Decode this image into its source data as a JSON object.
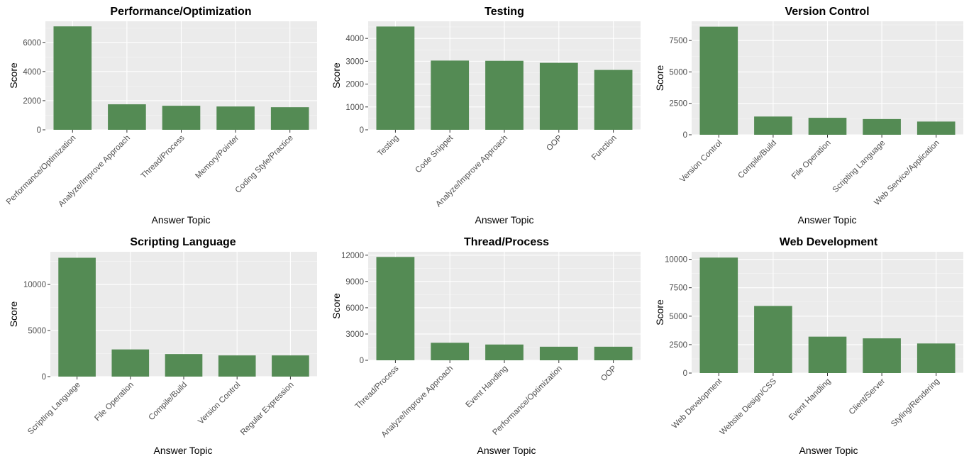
{
  "chart_data": [
    {
      "type": "bar",
      "title": "Performance/Optimization",
      "xlabel": "Answer Topic",
      "ylabel": "Score",
      "categories": [
        "Performance/Optimization",
        "Analyze/Improve Approach",
        "Thread/Process",
        "Memory/Pointer",
        "Coding Style/Practice"
      ],
      "values": [
        7100,
        1750,
        1650,
        1600,
        1550
      ],
      "yticks": [
        0,
        2000,
        4000,
        6000
      ],
      "ylim": [
        0,
        7450
      ],
      "color": "#548b54"
    },
    {
      "type": "bar",
      "title": "Testing",
      "xlabel": "Answer Topic",
      "ylabel": "Score",
      "categories": [
        "Testing",
        "Code Snippet",
        "Analyze/Improve Approach",
        "OOP",
        "Function"
      ],
      "values": [
        4520,
        3030,
        3020,
        2930,
        2620
      ],
      "yticks": [
        0,
        1000,
        2000,
        3000,
        4000
      ],
      "ylim": [
        0,
        4750
      ],
      "color": "#548b54"
    },
    {
      "type": "bar",
      "title": "Version Control",
      "xlabel": "Answer Topic",
      "ylabel": "Score",
      "categories": [
        "Version Control",
        "Compile/Build",
        "File Operation",
        "Scripting Language",
        "Web Service/Application"
      ],
      "values": [
        8600,
        1450,
        1350,
        1250,
        1050
      ],
      "yticks": [
        0,
        2500,
        5000,
        7500
      ],
      "ylim": [
        0,
        9030
      ],
      "color": "#548b54"
    },
    {
      "type": "bar",
      "title": "Scripting Language",
      "xlabel": "Answer Topic",
      "ylabel": "Score",
      "categories": [
        "Scripting Language",
        "File Operation",
        "Compile/Build",
        "Version Control",
        "Regular Expression"
      ],
      "values": [
        12900,
        2950,
        2450,
        2300,
        2300
      ],
      "yticks": [
        0,
        5000,
        10000
      ],
      "ylim": [
        0,
        13550
      ],
      "color": "#548b54"
    },
    {
      "type": "bar",
      "title": "Thread/Process",
      "xlabel": "Answer Topic",
      "ylabel": "Score",
      "categories": [
        "Thread/Process",
        "Analyze/Improve Approach",
        "Event Handling",
        "Performance/Optimization",
        "OOP"
      ],
      "values": [
        11800,
        2000,
        1800,
        1550,
        1550
      ],
      "yticks": [
        0,
        3000,
        6000,
        9000,
        12000
      ],
      "ylim": [
        0,
        12390
      ],
      "color": "#548b54"
    },
    {
      "type": "bar",
      "title": "Web Development",
      "xlabel": "Answer Topic",
      "ylabel": "Score",
      "categories": [
        "Web Development",
        "Website Design/CSS",
        "Event Handling",
        "Client/Server",
        "Styling/Rendering"
      ],
      "values": [
        10150,
        5900,
        3200,
        3050,
        2600
      ],
      "yticks": [
        0,
        2500,
        5000,
        7500,
        10000
      ],
      "ylim": [
        0,
        10660
      ],
      "color": "#548b54"
    }
  ]
}
